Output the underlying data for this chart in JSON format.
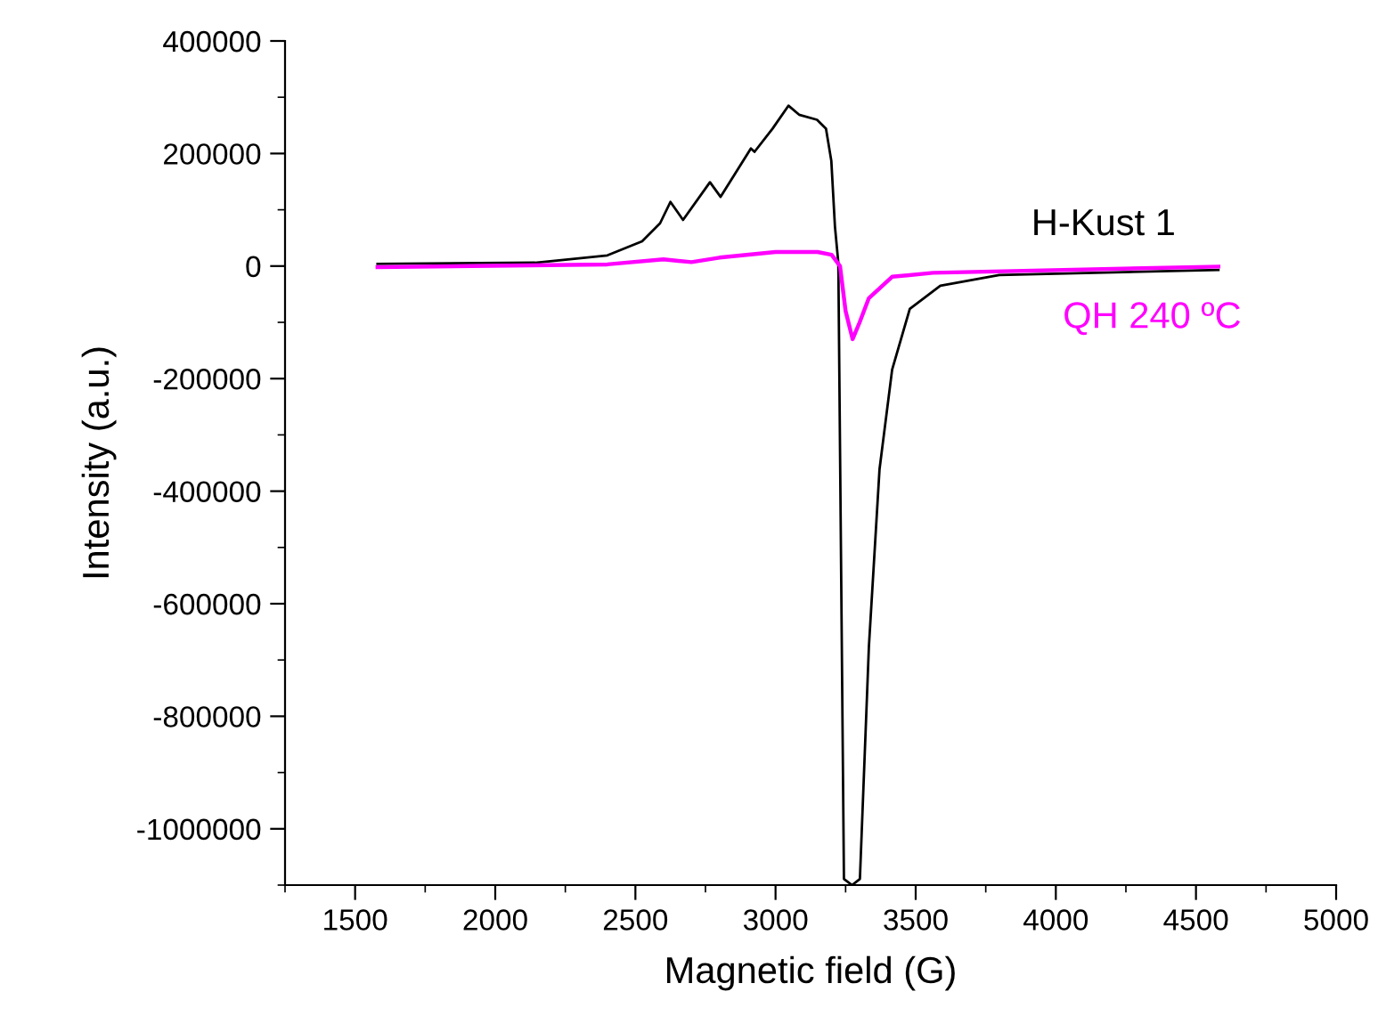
{
  "chart_data": {
    "type": "line",
    "xlabel": "Magnetic field (G)",
    "ylabel": "Intensity (a.u.)",
    "xlim": [
      1250,
      5000
    ],
    "ylim": [
      -1100000,
      400000
    ],
    "xticks": [
      {
        "value": 1250,
        "label": null
      },
      1500,
      {
        "value": 1750,
        "label": null
      },
      2000,
      {
        "value": 2250,
        "label": null
      },
      2500,
      {
        "value": 2750,
        "label": null
      },
      3000,
      {
        "value": 3250,
        "label": null
      },
      3500,
      {
        "value": 3750,
        "label": null
      },
      4000,
      {
        "value": 4250,
        "label": null
      },
      4500,
      {
        "value": 4750,
        "label": null
      },
      5000
    ],
    "yticks": [
      {
        "value": -1100000,
        "label": null
      },
      -1000000,
      {
        "value": -900000,
        "label": null
      },
      -800000,
      {
        "value": -700000,
        "label": null
      },
      -600000,
      {
        "value": -500000,
        "label": null
      },
      -400000,
      {
        "value": -300000,
        "label": null
      },
      -200000,
      {
        "value": -100000,
        "label": null
      },
      0,
      {
        "value": 100000,
        "label": null
      },
      200000,
      {
        "value": 300000,
        "label": null
      },
      400000
    ],
    "grid": false,
    "legend": false,
    "marker": "none",
    "line_style": "solid",
    "series": [
      {
        "name": "H-Kust 1",
        "color": "#000000",
        "x": [
          1580,
          2142,
          2400,
          2524,
          2588,
          2625,
          2670,
          2766,
          2804,
          2912,
          2925,
          2989,
          3046,
          3084,
          3148,
          3180,
          3199,
          3212,
          3224,
          3244,
          3273,
          3301,
          3333,
          3371,
          3416,
          3479,
          3588,
          3798,
          4580
        ],
        "values": [
          4000,
          6000,
          19000,
          44000,
          76000,
          114000,
          82000,
          149000,
          123000,
          209000,
          203000,
          244000,
          285000,
          269000,
          260000,
          244000,
          187000,
          70000,
          6000,
          -1089000,
          -1100000,
          -1089000,
          -677000,
          -361000,
          -184000,
          -76000,
          -35000,
          -16000,
          -7000
        ]
      },
      {
        "name": "QH 240 ºC",
        "color": "#ff00ff",
        "x": [
          1580,
          2400,
          2600,
          2700,
          2800,
          3000,
          3150,
          3200,
          3230,
          3250,
          3275,
          3300,
          3333,
          3416,
          3562,
          4580
        ],
        "values": [
          -2000,
          3000,
          12000,
          7000,
          15000,
          25000,
          25000,
          20000,
          0,
          -80000,
          -130000,
          -100000,
          -57000,
          -19000,
          -12000,
          -1000
        ]
      }
    ]
  }
}
